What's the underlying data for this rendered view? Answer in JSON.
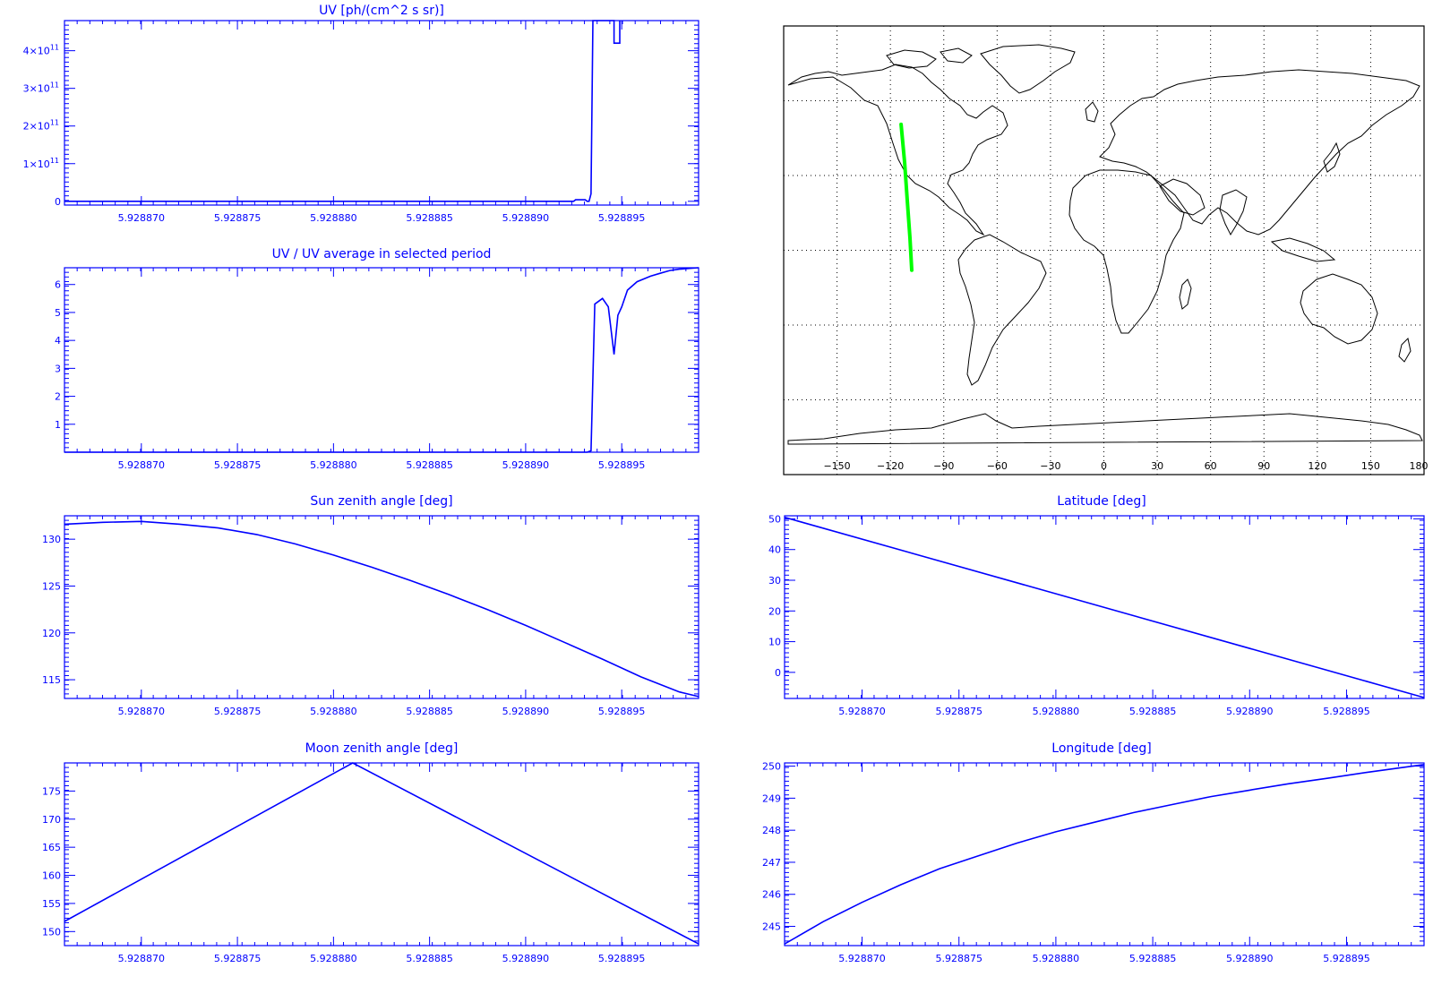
{
  "colors": {
    "axis": "#0000ff",
    "line": "#0000ff",
    "track": "#00ff00",
    "map": "#000000"
  },
  "chart_data": [
    {
      "id": "uv",
      "type": "line",
      "title": "UV [ph/(cm^2 s sr)]",
      "xlim": [
        5.928866,
        5.928899
      ],
      "ylim": [
        -10000000000.0,
        480000000000.0
      ],
      "xticks": [
        "5.928870",
        "5.928875",
        "5.928880",
        "5.928885",
        "5.928890",
        "5.928895"
      ],
      "yticks": [
        {
          "v": 0,
          "base": "0",
          "exp": ""
        },
        {
          "v": 100000000000.0,
          "base": "1×10",
          "exp": "11"
        },
        {
          "v": 200000000000.0,
          "base": "2×10",
          "exp": "11"
        },
        {
          "v": 300000000000.0,
          "base": "3×10",
          "exp": "11"
        },
        {
          "v": 400000000000.0,
          "base": "4×10",
          "exp": "11"
        }
      ],
      "x": [
        5.928866,
        5.9288925,
        5.9288926,
        5.9288931,
        5.9288932,
        5.9288933,
        5.9288934,
        5.9288935,
        5.9288946,
        5.9288946,
        5.9288949,
        5.9288949
      ],
      "y": [
        0,
        0,
        4000000000.0,
        4000000000.0,
        0,
        0,
        20000000000.0,
        480000000000.0,
        480000000000.0,
        420000000000.0,
        420000000000.0,
        480000000000.0
      ]
    },
    {
      "id": "uvratio",
      "type": "line",
      "title": "UV / UV average in selected period",
      "xlim": [
        5.928866,
        5.928899
      ],
      "ylim": [
        0,
        6.6
      ],
      "xticks": [
        "5.928870",
        "5.928875",
        "5.928880",
        "5.928885",
        "5.928890",
        "5.928895"
      ],
      "yticks": [
        {
          "v": 1,
          "base": "1",
          "exp": ""
        },
        {
          "v": 2,
          "base": "2",
          "exp": ""
        },
        {
          "v": 3,
          "base": "3",
          "exp": ""
        },
        {
          "v": 4,
          "base": "4",
          "exp": ""
        },
        {
          "v": 5,
          "base": "5",
          "exp": ""
        },
        {
          "v": 6,
          "base": "6",
          "exp": ""
        }
      ],
      "x": [
        5.928866,
        5.9288932,
        5.9288934,
        5.9288936,
        5.928894,
        5.9288943,
        5.9288946,
        5.9288948,
        5.928895,
        5.9288953,
        5.9288958,
        5.9288965,
        5.928897,
        5.9288975,
        5.928898,
        5.928899
      ],
      "y": [
        0,
        0,
        0.05,
        5.3,
        5.5,
        5.2,
        3.5,
        4.9,
        5.2,
        5.8,
        6.1,
        6.3,
        6.4,
        6.5,
        6.55,
        6.6
      ]
    },
    {
      "id": "sza",
      "type": "line",
      "title": "Sun zenith angle [deg]",
      "xlim": [
        5.928866,
        5.928899
      ],
      "ylim": [
        113,
        132.5
      ],
      "xticks": [
        "5.928870",
        "5.928875",
        "5.928880",
        "5.928885",
        "5.928890",
        "5.928895"
      ],
      "yticks": [
        {
          "v": 115,
          "base": "115",
          "exp": ""
        },
        {
          "v": 120,
          "base": "120",
          "exp": ""
        },
        {
          "v": 125,
          "base": "125",
          "exp": ""
        },
        {
          "v": 130,
          "base": "130",
          "exp": ""
        }
      ],
      "x": [
        5.928866,
        5.928868,
        5.92887,
        5.928872,
        5.928874,
        5.928876,
        5.928878,
        5.92888,
        5.928882,
        5.928884,
        5.928886,
        5.928888,
        5.92889,
        5.928892,
        5.928894,
        5.928896,
        5.928898,
        5.928899
      ],
      "y": [
        131.6,
        131.8,
        131.9,
        131.6,
        131.2,
        130.5,
        129.5,
        128.3,
        127.0,
        125.6,
        124.1,
        122.5,
        120.8,
        119.0,
        117.2,
        115.3,
        113.7,
        113.2
      ]
    },
    {
      "id": "mza",
      "type": "line",
      "title": "Moon zenith angle [deg]",
      "xlim": [
        5.928866,
        5.928899
      ],
      "ylim": [
        147.5,
        180
      ],
      "xticks": [
        "5.928870",
        "5.928875",
        "5.928880",
        "5.928885",
        "5.928890",
        "5.928895"
      ],
      "yticks": [
        {
          "v": 150,
          "base": "150",
          "exp": ""
        },
        {
          "v": 155,
          "base": "155",
          "exp": ""
        },
        {
          "v": 160,
          "base": "160",
          "exp": ""
        },
        {
          "v": 165,
          "base": "165",
          "exp": ""
        },
        {
          "v": 170,
          "base": "170",
          "exp": ""
        },
        {
          "v": 175,
          "base": "175",
          "exp": ""
        }
      ],
      "x": [
        5.928866,
        5.928881,
        5.928899
      ],
      "y": [
        151.8,
        180,
        147.8
      ]
    },
    {
      "id": "lat",
      "type": "line",
      "title": "Latitude [deg]",
      "xlim": [
        5.928866,
        5.928899
      ],
      "ylim": [
        -8.5,
        51
      ],
      "xticks": [
        "5.928870",
        "5.928875",
        "5.928880",
        "5.928885",
        "5.928890",
        "5.928895"
      ],
      "yticks": [
        {
          "v": 0,
          "base": "0",
          "exp": ""
        },
        {
          "v": 10,
          "base": "10",
          "exp": ""
        },
        {
          "v": 20,
          "base": "20",
          "exp": ""
        },
        {
          "v": 30,
          "base": "30",
          "exp": ""
        },
        {
          "v": 40,
          "base": "40",
          "exp": ""
        },
        {
          "v": 50,
          "base": "50",
          "exp": ""
        }
      ],
      "x": [
        5.928866,
        5.928899
      ],
      "y": [
        50.5,
        -8.2
      ]
    },
    {
      "id": "lon",
      "type": "line",
      "title": "Longitude [deg]",
      "xlim": [
        5.928866,
        5.928899
      ],
      "ylim": [
        244.4,
        250.1
      ],
      "xticks": [
        "5.928870",
        "5.928875",
        "5.928880",
        "5.928885",
        "5.928890",
        "5.928895"
      ],
      "yticks": [
        {
          "v": 245,
          "base": "245",
          "exp": ""
        },
        {
          "v": 246,
          "base": "246",
          "exp": ""
        },
        {
          "v": 247,
          "base": "247",
          "exp": ""
        },
        {
          "v": 248,
          "base": "248",
          "exp": ""
        },
        {
          "v": 249,
          "base": "249",
          "exp": ""
        },
        {
          "v": 250,
          "base": "250",
          "exp": ""
        }
      ],
      "x": [
        5.928866,
        5.928868,
        5.92887,
        5.928872,
        5.928874,
        5.928876,
        5.928878,
        5.92888,
        5.928882,
        5.928884,
        5.928886,
        5.928888,
        5.92889,
        5.928892,
        5.928894,
        5.928896,
        5.928899
      ],
      "y": [
        244.45,
        245.15,
        245.75,
        246.3,
        246.8,
        247.2,
        247.6,
        247.95,
        248.25,
        248.55,
        248.8,
        249.05,
        249.25,
        249.45,
        249.62,
        249.8,
        250.05
      ]
    }
  ],
  "map": {
    "xticks": [
      -150,
      -120,
      -90,
      -60,
      -30,
      0,
      30,
      60,
      90,
      120,
      150,
      180
    ],
    "xlim": [
      -180,
      180
    ],
    "ylim": [
      -90,
      90
    ],
    "grid_lon": [
      -150,
      -120,
      -90,
      -60,
      -30,
      0,
      30,
      60,
      90,
      120,
      150
    ],
    "grid_lat": [
      -60,
      -30,
      0,
      30,
      60
    ],
    "track": [
      [
        -114,
        50.5
      ],
      [
        -112,
        35
      ],
      [
        -110.5,
        20
      ],
      [
        -109,
        5
      ],
      [
        -108,
        -8
      ]
    ]
  }
}
